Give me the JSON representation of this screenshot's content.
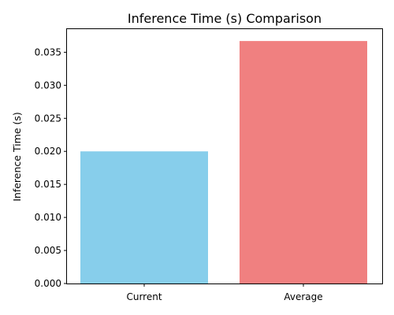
{
  "chart_data": {
    "type": "bar",
    "title": "Inference Time (s) Comparison",
    "xlabel": "",
    "ylabel": "Inference Time (s)",
    "categories": [
      "Current",
      "Average"
    ],
    "values": [
      0.02,
      0.0367
    ],
    "colors": [
      "#87ceeb",
      "#f08080"
    ],
    "ylim": [
      0,
      0.0385
    ],
    "yticks": [
      "0.000",
      "0.005",
      "0.010",
      "0.015",
      "0.020",
      "0.025",
      "0.030",
      "0.035"
    ],
    "grid": false,
    "legend": "none"
  }
}
